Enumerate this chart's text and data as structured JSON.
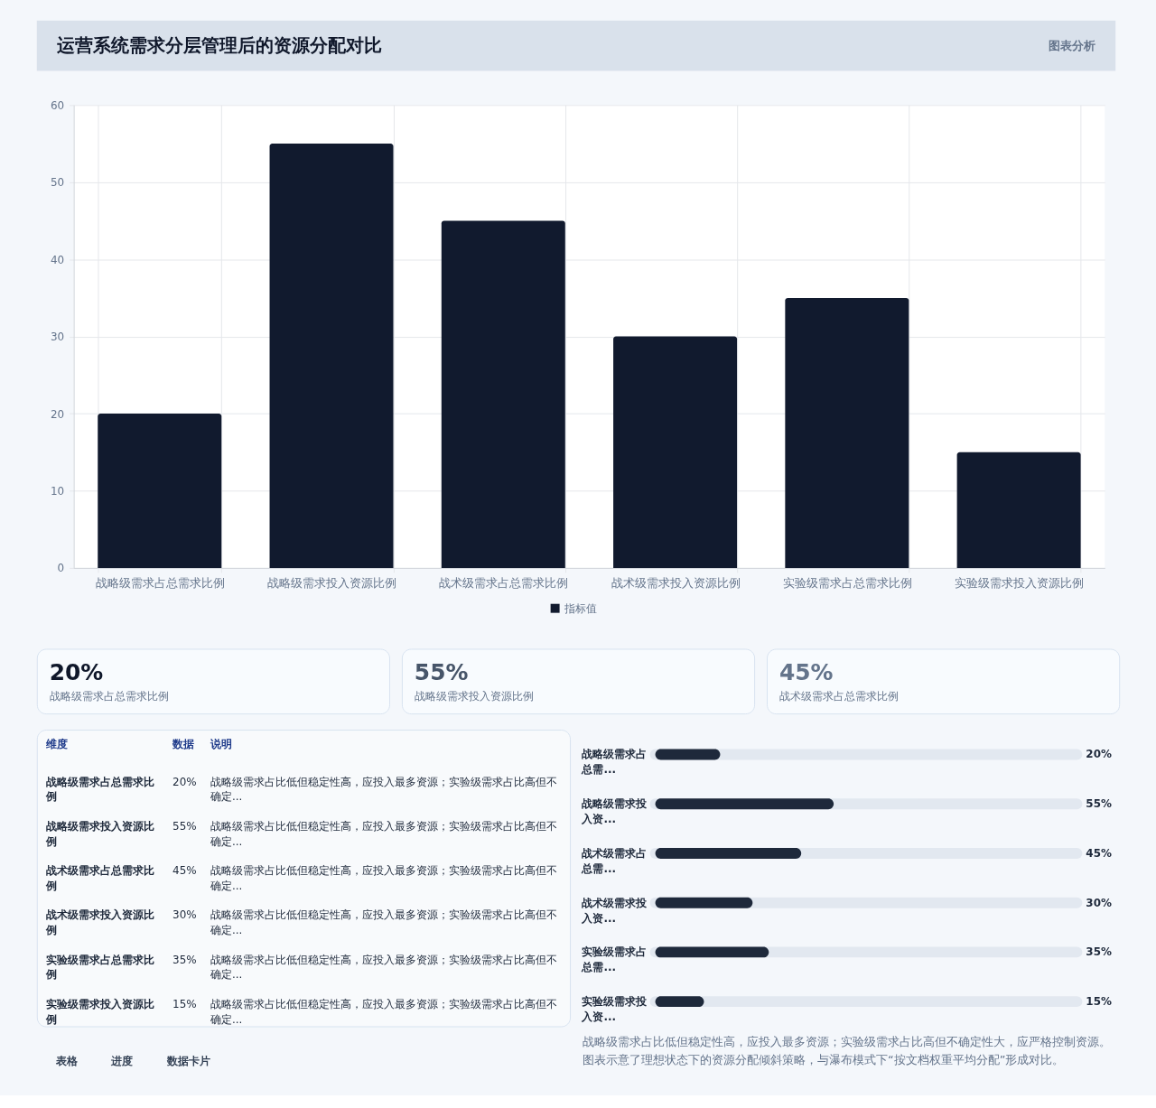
{
  "chart_data": [
    {
      "type": "bar",
      "title": "运营系统需求分层管理后的资源分配对比",
      "annotations": [
        "图表分析"
      ],
      "categories": [
        "战略级需求占总需求比例",
        "战略级需求投入资源比例",
        "战术级需求占总需求比例",
        "战术级需求投入资源比例",
        "实验级需求占总需求比例",
        "实验级需求投入资源比例"
      ],
      "series": [
        {
          "name": "指标值",
          "color": "#111a2e",
          "values": [
            20,
            55,
            45,
            30,
            35,
            15
          ]
        }
      ],
      "ylim": [
        0,
        60
      ],
      "yticks": [
        0,
        10,
        20,
        30,
        40,
        50,
        60
      ],
      "grid": true,
      "legend": "bottom"
    },
    {
      "type": "other",
      "categories": [
        "战略级需求占总需求比例",
        "战略级需求投入资源比例",
        "战术级需求占总需求比例"
      ],
      "value_labels": [
        "20%",
        "55%",
        "45%"
      ]
    },
    {
      "type": "other",
      "categories": [
        "战略级需求占总需求比例",
        "战略级需求投入资源比例",
        "战术级需求占总需求比例",
        "战术级需求投入资源比例",
        "实验级需求占总需求比例",
        "实验级需求投入资源比例"
      ],
      "value_labels": [
        "20%",
        "55%",
        "45%",
        "30%",
        "35%",
        "15%"
      ],
      "annotations": [
        "维度",
        "数据",
        "说明",
        "战略级需求占比低但稳定性高，应投入最多资源；实验级需求占比高但不确定...",
        "战略级需求占比低但稳定性高，应投入最多资源；实验级需求占比高但不确定...",
        "战略级需求占比低但稳定性高，应投入最多资源；实验级需求占比高但不确定...",
        "战略级需求占比低但稳定性高，应投入最多资源；实验级需求占比高但不确定...",
        "战略级需求占比低但稳定性高，应投入最多资源；实验级需求占比高但不确定...",
        "战略级需求占比低但稳定性高，应投入最多资源；实验级需求占比高但不确定..."
      ]
    },
    {
      "type": "bar",
      "orientation": "horizontal",
      "categories": [
        "战略级需求占总需...",
        "战略级需求投入资...",
        "战术级需求占总需...",
        "战术级需求投入资...",
        "实验级需求占总需...",
        "实验级需求投入资..."
      ],
      "values": [
        20,
        55,
        45,
        30,
        35,
        15
      ],
      "value_labels": [
        "20%",
        "55%",
        "45%",
        "30%",
        "35%",
        "15%"
      ],
      "color": "#1e293b",
      "xlim": [
        0,
        130
      ],
      "tick_labels": "y",
      "annotations": [
        "战略级需求占比低但稳定性高，应投入最多资源；实验级需求占比高但不确定性大，应严格控制资源。图表示意了理想状态下的资源分配倾斜策略，与瀑布模式下“按文档权重平均分配”形成对比。"
      ]
    },
    {
      "type": "other",
      "annotations": [
        "表格",
        "进度",
        "数据卡片"
      ]
    }
  ]
}
